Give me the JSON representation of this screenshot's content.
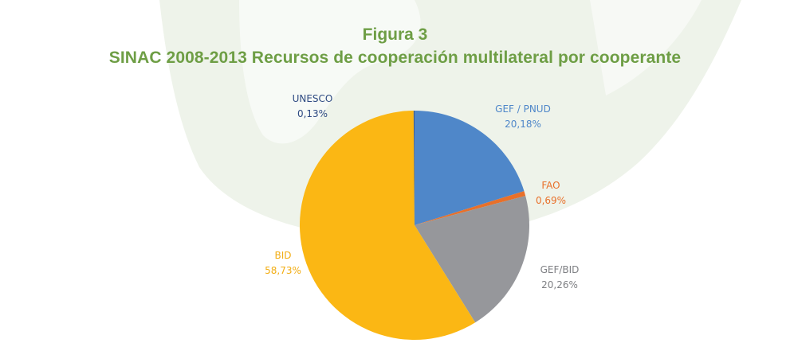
{
  "figure": {
    "title": "Figura 3",
    "subtitle": "SINAC 2008-2013 Recursos de cooperación multilateral por cooperante"
  },
  "colors": {
    "title": "#6e9e45",
    "watermark": "#eef3ea"
  },
  "chart_data": {
    "type": "pie",
    "title": "Figura 3",
    "subtitle": "SINAC 2008-2013 Recursos de cooperación multilateral por cooperante",
    "slices": [
      {
        "label": "GEF / PNUD",
        "value": 20.18,
        "value_text": "20,18%",
        "color": "#4f87c9",
        "label_color": "#4f87c9"
      },
      {
        "label": "FAO",
        "value": 0.69,
        "value_text": "0,69%",
        "color": "#e8702a",
        "label_color": "#e8702a"
      },
      {
        "label": "GEF/BID",
        "value": 20.26,
        "value_text": "20,26%",
        "color": "#96979b",
        "label_color": "#7f8084"
      },
      {
        "label": "BID",
        "value": 58.73,
        "value_text": "58,73%",
        "color": "#fbb714",
        "label_color": "#f2ad14"
      },
      {
        "label": "UNESCO",
        "value": 0.13,
        "value_text": "0,13%",
        "color": "#3d5a8a",
        "label_color": "#2e4a82"
      }
    ],
    "start_angle": "12 o'clock",
    "direction": "clockwise",
    "legend": "none"
  }
}
